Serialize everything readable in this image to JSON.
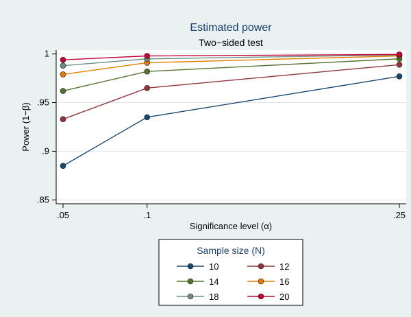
{
  "chart_data": {
    "type": "line",
    "title": "Estimated power",
    "subtitle": "Two−sided test",
    "xlabel": "Significance level (α)",
    "ylabel": "Power (1−β)",
    "x": [
      0.05,
      0.1,
      0.25
    ],
    "x_tick_labels": [
      ".05",
      ".1",
      ".25"
    ],
    "y_ticks": [
      0.85,
      0.9,
      0.95,
      1
    ],
    "y_tick_labels": [
      ".85",
      ".9",
      ".95",
      "1"
    ],
    "xlim": [
      0.05,
      0.25
    ],
    "ylim": [
      0.846,
      1.004
    ],
    "grid": "horizontal",
    "legend": {
      "title": "Sample size (N)",
      "placement": "bottom",
      "columns": 2
    },
    "series": [
      {
        "name": "10",
        "color": "#1a476f",
        "values": [
          0.885,
          0.935,
          0.977
        ]
      },
      {
        "name": "12",
        "color": "#90353b",
        "values": [
          0.933,
          0.965,
          0.989
        ]
      },
      {
        "name": "14",
        "color": "#55752f",
        "values": [
          0.962,
          0.982,
          0.995
        ]
      },
      {
        "name": "16",
        "color": "#e37e00",
        "values": [
          0.979,
          0.991,
          0.998
        ]
      },
      {
        "name": "18",
        "color": "#6e8e84",
        "values": [
          0.988,
          0.995,
          0.999
        ]
      },
      {
        "name": "20",
        "color": "#c10534",
        "values": [
          0.994,
          0.998,
          0.9995
        ]
      }
    ]
  }
}
